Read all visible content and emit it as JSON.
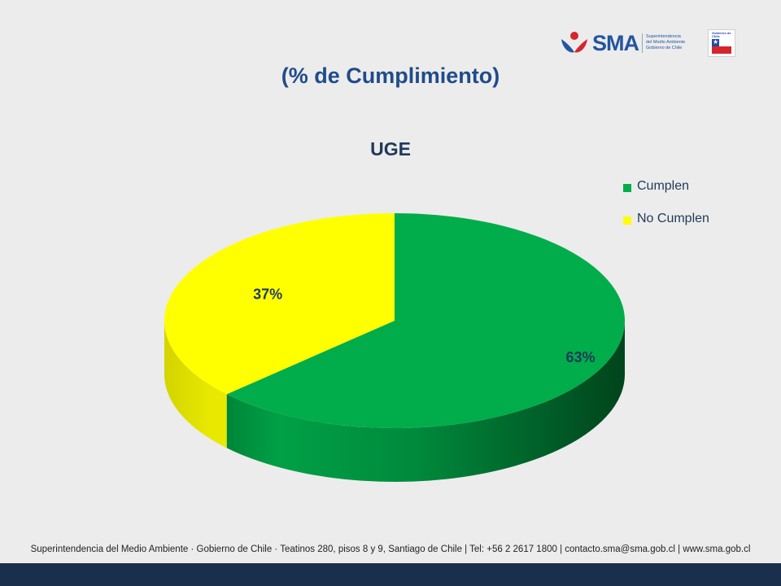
{
  "header": {
    "title": "(% de Cumplimiento)",
    "logo": {
      "text": "SMA",
      "subtitle_lines": [
        "Superintendencia",
        "del Medio Ambiente",
        "Gobierno de Chile"
      ],
      "gov_label": "Gobierno de Chile",
      "colors": {
        "brand_blue": "#24559e",
        "brand_red": "#d5262c",
        "flag_blue": "#1f4aa5"
      }
    }
  },
  "chart_data": {
    "type": "pie",
    "title": "UGE",
    "slices": [
      {
        "label": "Cumplen",
        "value": 63,
        "display": "63%",
        "color": "#00ad4a"
      },
      {
        "label": "No Cumplen",
        "value": 37,
        "display": "37%",
        "color": "#ffff00"
      }
    ],
    "legend_position": "right",
    "style": "3d"
  },
  "footer": {
    "text": "Superintendencia del Medio Ambiente · Gobierno de Chile · Teatinos 280, pisos 8 y 9, Santiago de Chile | Tel: +56 2 2617 1800 | contacto.sma@sma.gob.cl | www.sma.gob.cl",
    "bar_color": "#1a2f4b"
  }
}
